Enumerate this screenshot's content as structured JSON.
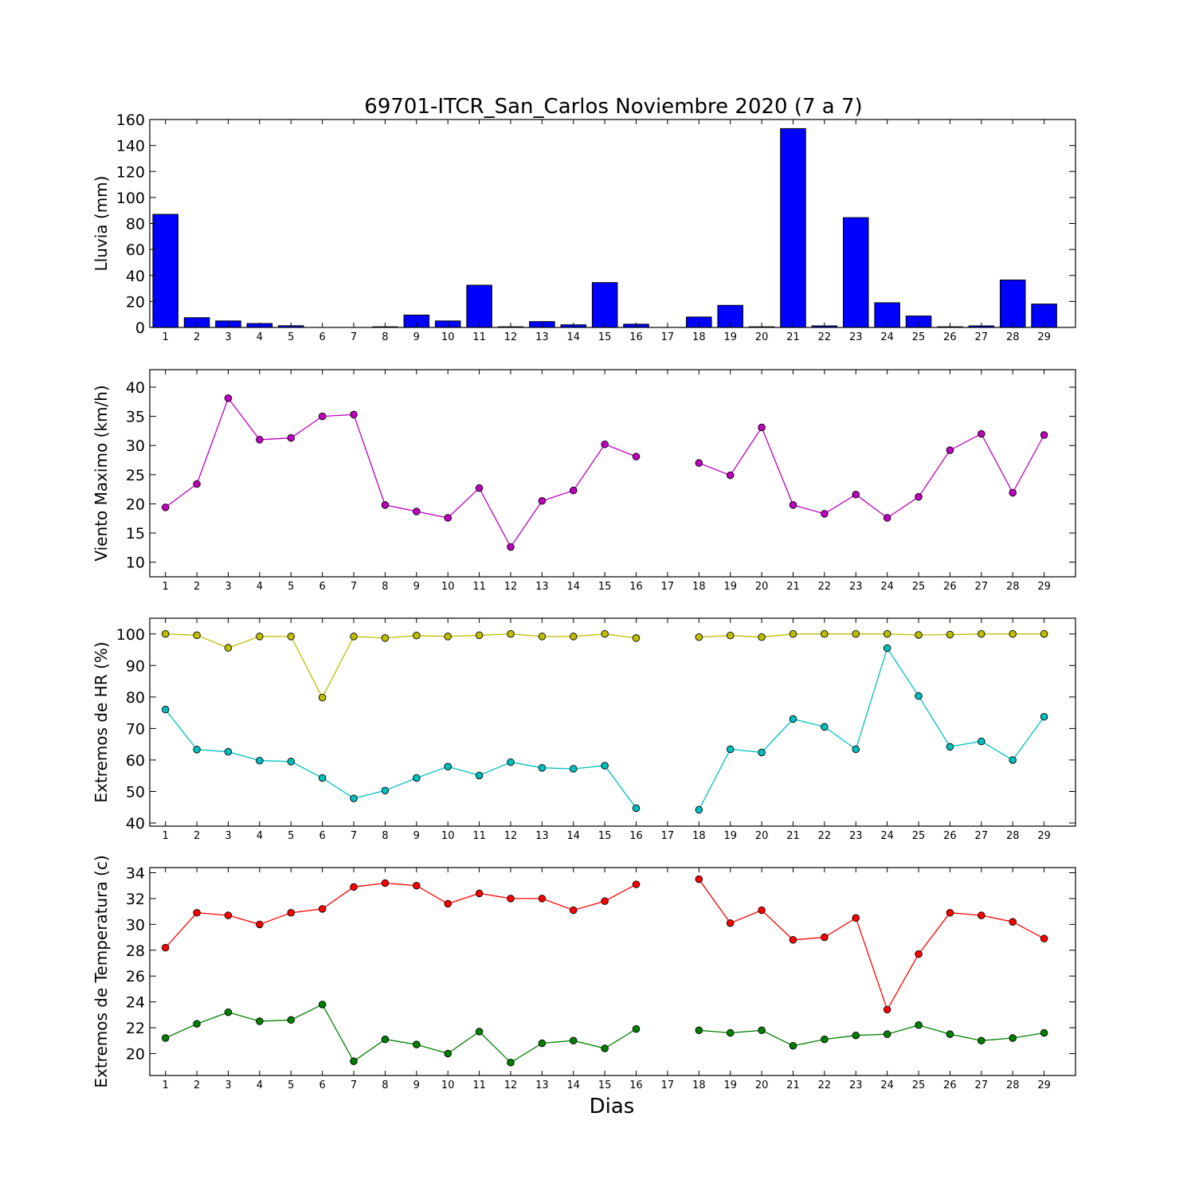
{
  "figure": {
    "title": "69701-ITCR_San_Carlos Noviembre 2020  (7 a 7)",
    "xlabel": "Dias"
  },
  "chart_data": [
    {
      "type": "bar",
      "ylabel": "Lluvia (mm)",
      "ylim": [
        0,
        160
      ],
      "yticks": [
        0,
        20,
        40,
        60,
        80,
        100,
        120,
        140,
        160
      ],
      "categories": [
        "1",
        "2",
        "3",
        "4",
        "5",
        "6",
        "7",
        "8",
        "9",
        "10",
        "11",
        "12",
        "13",
        "14",
        "15",
        "16",
        "17",
        "18",
        "19",
        "20",
        "21",
        "22",
        "23",
        "24",
        "25",
        "26",
        "27",
        "28",
        "29"
      ],
      "series": [
        {
          "color": "#0000ff",
          "values": [
            87,
            7.5,
            5,
            3,
            1.3,
            0,
            0,
            0.5,
            9.5,
            5,
            32.5,
            0.5,
            4.5,
            2,
            34.5,
            2.5,
            0,
            8,
            17,
            0.5,
            153,
            1.2,
            84.5,
            19,
            8.8,
            0.5,
            1.2,
            36.5,
            18
          ]
        }
      ]
    },
    {
      "type": "line",
      "ylabel": "Viento Maximo (km/h)",
      "ylim": [
        7.5,
        43
      ],
      "yticks": [
        10,
        15,
        20,
        25,
        30,
        35,
        40
      ],
      "categories": [
        "1",
        "2",
        "3",
        "4",
        "5",
        "6",
        "7",
        "8",
        "9",
        "10",
        "11",
        "12",
        "13",
        "14",
        "15",
        "16",
        "17",
        "18",
        "19",
        "20",
        "21",
        "22",
        "23",
        "24",
        "25",
        "26",
        "27",
        "28",
        "29"
      ],
      "series": [
        {
          "color": "#bf00bf",
          "values": [
            19.4,
            23.4,
            38.1,
            31.0,
            31.3,
            35.0,
            35.3,
            19.8,
            18.7,
            17.6,
            22.7,
            12.6,
            20.5,
            22.3,
            30.2,
            28.1,
            null,
            27.0,
            24.9,
            33.1,
            19.8,
            18.3,
            21.6,
            17.6,
            21.2,
            29.2,
            32.0,
            21.9,
            31.8
          ]
        }
      ]
    },
    {
      "type": "line",
      "ylabel": "Extremos de HR (%)",
      "ylim": [
        39,
        105
      ],
      "yticks": [
        40,
        50,
        60,
        70,
        80,
        90,
        100
      ],
      "categories": [
        "1",
        "2",
        "3",
        "4",
        "5",
        "6",
        "7",
        "8",
        "9",
        "10",
        "11",
        "12",
        "13",
        "14",
        "15",
        "16",
        "17",
        "18",
        "19",
        "20",
        "21",
        "22",
        "23",
        "24",
        "25",
        "26",
        "27",
        "28",
        "29"
      ],
      "series": [
        {
          "color": "#bfbf00",
          "values": [
            100,
            99.6,
            95.6,
            99.2,
            99.2,
            79.8,
            99.2,
            98.7,
            99.5,
            99.2,
            99.6,
            100,
            99.2,
            99.2,
            100,
            98.7,
            null,
            99.0,
            99.5,
            99.0,
            100,
            100,
            100,
            100,
            99.7,
            99.8,
            100,
            100,
            100
          ]
        },
        {
          "color": "#00bfbf",
          "values": [
            76.0,
            63.3,
            62.6,
            59.8,
            59.5,
            54.3,
            47.8,
            50.3,
            54.3,
            57.9,
            55.1,
            59.3,
            57.5,
            57.2,
            58.2,
            44.7,
            null,
            44.2,
            63.4,
            62.4,
            73.0,
            70.5,
            63.4,
            95.5,
            80.3,
            64.2,
            65.9,
            60.0,
            73.7
          ]
        }
      ]
    },
    {
      "type": "line",
      "ylabel": "Extremos de Temperatura (c)",
      "ylim": [
        18.3,
        34.4
      ],
      "yticks": [
        20,
        22,
        24,
        26,
        28,
        30,
        32,
        34
      ],
      "categories": [
        "1",
        "2",
        "3",
        "4",
        "5",
        "6",
        "7",
        "8",
        "9",
        "10",
        "11",
        "12",
        "13",
        "14",
        "15",
        "16",
        "17",
        "18",
        "19",
        "20",
        "21",
        "22",
        "23",
        "24",
        "25",
        "26",
        "27",
        "28",
        "29"
      ],
      "series": [
        {
          "color": "#ff0000",
          "values": [
            28.2,
            30.9,
            30.7,
            30.0,
            30.9,
            31.2,
            32.9,
            33.2,
            33.0,
            31.6,
            32.4,
            32.0,
            32.0,
            31.1,
            31.8,
            33.1,
            null,
            33.5,
            30.1,
            31.1,
            28.8,
            29.0,
            30.5,
            23.4,
            27.7,
            30.9,
            30.7,
            30.2,
            28.9
          ]
        },
        {
          "color": "#007f00",
          "values": [
            21.2,
            22.3,
            23.2,
            22.5,
            22.6,
            23.8,
            19.4,
            21.1,
            20.7,
            20.0,
            21.7,
            19.3,
            20.8,
            21.0,
            20.4,
            21.9,
            null,
            21.8,
            21.6,
            21.8,
            20.6,
            21.1,
            21.4,
            21.5,
            22.2,
            21.5,
            21.0,
            21.2,
            21.6
          ]
        }
      ]
    }
  ]
}
